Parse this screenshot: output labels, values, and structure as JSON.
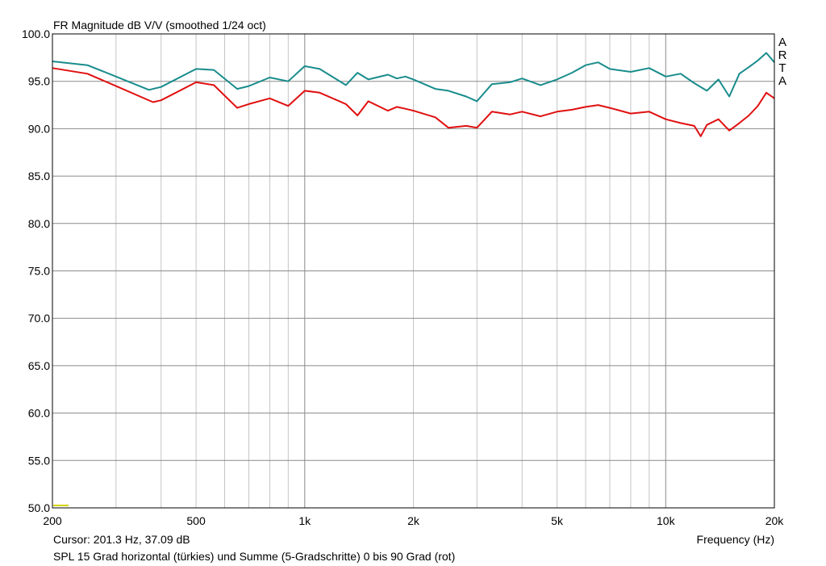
{
  "chart_data": {
    "type": "line",
    "title": "FR Magnitude dB V/V (smoothed 1/24 oct)",
    "xlabel": "Frequency (Hz)",
    "ylabel": "",
    "xscale": "log",
    "xlim": [
      200,
      20000
    ],
    "ylim": [
      50,
      100
    ],
    "grid": true,
    "x_tick_labels": [
      {
        "value": 200,
        "label": "200"
      },
      {
        "value": 500,
        "label": "500"
      },
      {
        "value": 1000,
        "label": "1k"
      },
      {
        "value": 2000,
        "label": "2k"
      },
      {
        "value": 5000,
        "label": "5k"
      },
      {
        "value": 10000,
        "label": "10k"
      },
      {
        "value": 20000,
        "label": "20k"
      }
    ],
    "y_tick_labels": [
      {
        "value": 100,
        "label": "100.0"
      },
      {
        "value": 95,
        "label": "95.0"
      },
      {
        "value": 90,
        "label": "90.0"
      },
      {
        "value": 85,
        "label": "85.0"
      },
      {
        "value": 80,
        "label": "80.0"
      },
      {
        "value": 75,
        "label": "75.0"
      },
      {
        "value": 70,
        "label": "70.0"
      },
      {
        "value": 65,
        "label": "65.0"
      },
      {
        "value": 60,
        "label": "60.0"
      },
      {
        "value": 55,
        "label": "55.0"
      },
      {
        "value": 50,
        "label": "50.0"
      }
    ],
    "series": [
      {
        "color": "#1a8c8c",
        "x": [
          200,
          250,
          300,
          370,
          400,
          500,
          560,
          650,
          700,
          800,
          900,
          1000,
          1100,
          1300,
          1400,
          1500,
          1700,
          1800,
          1900,
          2000,
          2300,
          2500,
          2800,
          3000,
          3300,
          3700,
          4000,
          4500,
          5000,
          5500,
          6000,
          6500,
          7000,
          8000,
          9000,
          10000,
          11000,
          12000,
          13000,
          14000,
          15000,
          16000,
          17000,
          18000,
          19000,
          20000
        ],
        "y": [
          97.1,
          96.7,
          95.5,
          94.1,
          94.4,
          96.3,
          96.2,
          94.2,
          94.5,
          95.4,
          95.0,
          96.6,
          96.3,
          94.6,
          95.9,
          95.2,
          95.7,
          95.3,
          95.5,
          95.2,
          94.2,
          94.0,
          93.4,
          92.9,
          94.7,
          94.9,
          95.3,
          94.6,
          95.2,
          95.9,
          96.7,
          97.0,
          96.3,
          96.0,
          96.4,
          95.5,
          95.8,
          94.8,
          94.0,
          95.2,
          93.4,
          95.8,
          96.5,
          97.2,
          98.0,
          97.0
        ]
      },
      {
        "color": "#e01010",
        "x": [
          200,
          250,
          300,
          380,
          400,
          500,
          560,
          650,
          700,
          800,
          900,
          1000,
          1100,
          1300,
          1400,
          1500,
          1700,
          1800,
          1900,
          2000,
          2300,
          2500,
          2800,
          3000,
          3300,
          3700,
          4000,
          4500,
          5000,
          5500,
          6000,
          6500,
          7000,
          8000,
          9000,
          10000,
          11000,
          12000,
          12500,
          13000,
          14000,
          15000,
          16000,
          17000,
          18000,
          19000,
          20000
        ],
        "y": [
          96.4,
          95.8,
          94.5,
          92.8,
          93.0,
          94.9,
          94.6,
          92.2,
          92.6,
          93.2,
          92.4,
          94.0,
          93.8,
          92.6,
          91.4,
          92.9,
          91.9,
          92.3,
          92.1,
          91.9,
          91.2,
          90.1,
          90.3,
          90.1,
          91.8,
          91.5,
          91.8,
          91.3,
          91.8,
          92.0,
          92.3,
          92.5,
          92.2,
          91.6,
          91.8,
          91.0,
          90.6,
          90.3,
          89.2,
          90.4,
          91.0,
          89.8,
          90.6,
          91.4,
          92.4,
          93.8,
          93.2
        ]
      }
    ],
    "cursor_label": "Cursor: 201.3 Hz, 37.09 dB",
    "caption": "SPL 15 Grad horizontal (türkies) und Summe (5-Gradschritte) 0 bis 90 Grad (rot)",
    "watermark": [
      "A",
      "R",
      "T",
      "A"
    ]
  }
}
